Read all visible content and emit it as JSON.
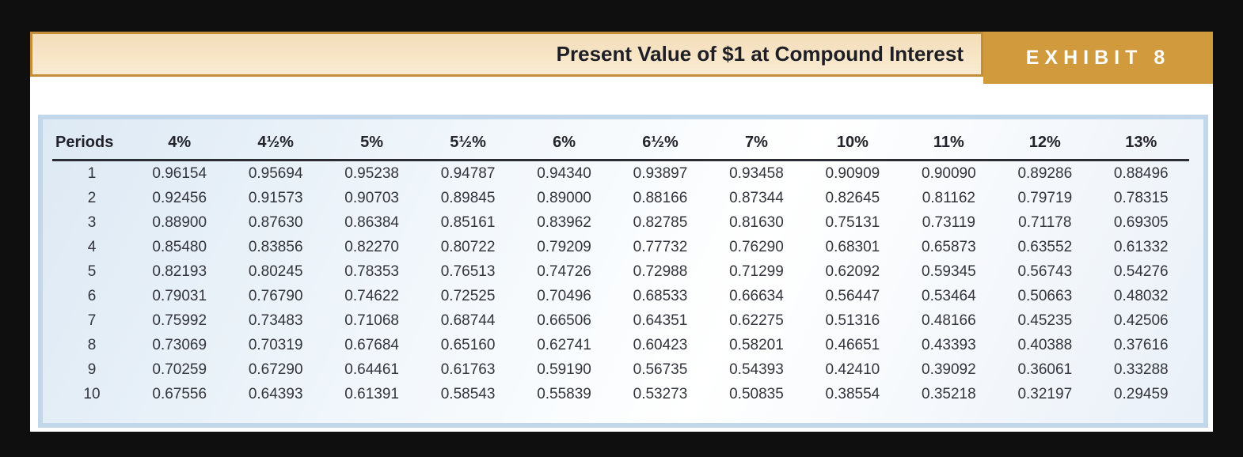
{
  "banner": {
    "title": "Present Value of $1 at Compound Interest",
    "exhibit_label": "EXHIBIT 8"
  },
  "colors": {
    "page_background": "#0f0f0f",
    "panel_background": "#ffffff",
    "banner_background": "#f6e2c0",
    "banner_border": "#c28e37",
    "exhibit_tag_background": "#d19a3d",
    "exhibit_tag_text": "#ffffff",
    "table_border": "#c3d7eb",
    "table_background_tint": "#dde9f4",
    "header_rule": "#2c2c34",
    "text_color": "#23232b"
  },
  "chart_data": {
    "type": "table",
    "title": "Present Value of $1 at Compound Interest",
    "columns": [
      "Periods",
      "4%",
      "4½%",
      "5%",
      "5½%",
      "6%",
      "6½%",
      "7%",
      "10%",
      "11%",
      "12%",
      "13%"
    ],
    "rows": [
      [
        "1",
        "0.96154",
        "0.95694",
        "0.95238",
        "0.94787",
        "0.94340",
        "0.93897",
        "0.93458",
        "0.90909",
        "0.90090",
        "0.89286",
        "0.88496"
      ],
      [
        "2",
        "0.92456",
        "0.91573",
        "0.90703",
        "0.89845",
        "0.89000",
        "0.88166",
        "0.87344",
        "0.82645",
        "0.81162",
        "0.79719",
        "0.78315"
      ],
      [
        "3",
        "0.88900",
        "0.87630",
        "0.86384",
        "0.85161",
        "0.83962",
        "0.82785",
        "0.81630",
        "0.75131",
        "0.73119",
        "0.71178",
        "0.69305"
      ],
      [
        "4",
        "0.85480",
        "0.83856",
        "0.82270",
        "0.80722",
        "0.79209",
        "0.77732",
        "0.76290",
        "0.68301",
        "0.65873",
        "0.63552",
        "0.61332"
      ],
      [
        "5",
        "0.82193",
        "0.80245",
        "0.78353",
        "0.76513",
        "0.74726",
        "0.72988",
        "0.71299",
        "0.62092",
        "0.59345",
        "0.56743",
        "0.54276"
      ],
      [
        "6",
        "0.79031",
        "0.76790",
        "0.74622",
        "0.72525",
        "0.70496",
        "0.68533",
        "0.66634",
        "0.56447",
        "0.53464",
        "0.50663",
        "0.48032"
      ],
      [
        "7",
        "0.75992",
        "0.73483",
        "0.71068",
        "0.68744",
        "0.66506",
        "0.64351",
        "0.62275",
        "0.51316",
        "0.48166",
        "0.45235",
        "0.42506"
      ],
      [
        "8",
        "0.73069",
        "0.70319",
        "0.67684",
        "0.65160",
        "0.62741",
        "0.60423",
        "0.58201",
        "0.46651",
        "0.43393",
        "0.40388",
        "0.37616"
      ],
      [
        "9",
        "0.70259",
        "0.67290",
        "0.64461",
        "0.61763",
        "0.59190",
        "0.56735",
        "0.54393",
        "0.42410",
        "0.39092",
        "0.36061",
        "0.33288"
      ],
      [
        "10",
        "0.67556",
        "0.64393",
        "0.61391",
        "0.58543",
        "0.55839",
        "0.53273",
        "0.50835",
        "0.38554",
        "0.35218",
        "0.32197",
        "0.29459"
      ]
    ]
  }
}
